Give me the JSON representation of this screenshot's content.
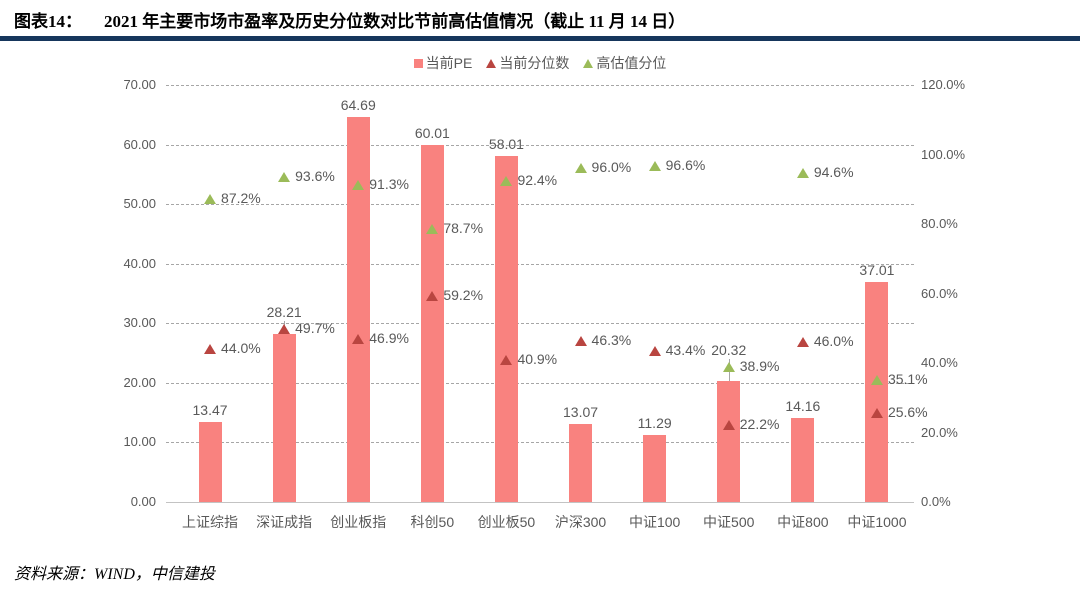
{
  "header": {
    "figure_label": "图表14：",
    "title": "2021 年主要市场市盈率及历史分位数对比节前高估值情况（截止 11 月 14 日）"
  },
  "footer": {
    "source": "资料来源：WIND，中信建投"
  },
  "colors": {
    "bar": "#f9827f",
    "current_percentile": "#b94540",
    "high_percentile": "#9bbb59",
    "grid": "#a6a6a6",
    "axis_text": "#595959",
    "title_rule": "#16365c"
  },
  "chart_data": {
    "type": "bar",
    "title": "2021 年主要市场市盈率及历史分位数对比节前高估值情况（截止 11 月 14 日）",
    "categories": [
      "上证综指",
      "深证成指",
      "创业板指",
      "科创50",
      "创业板50",
      "沪深300",
      "中证100",
      "中证500",
      "中证800",
      "中证1000"
    ],
    "series": [
      {
        "name": "当前PE",
        "type": "bar",
        "axis": "left",
        "values": [
          13.47,
          28.21,
          64.69,
          60.01,
          58.01,
          13.07,
          11.29,
          20.32,
          14.16,
          37.01
        ],
        "labels": [
          "13.47",
          "28.21",
          "64.69",
          "60.01",
          "58.01",
          "13.07",
          "11.29",
          "20.32",
          "14.16",
          "37.01"
        ]
      },
      {
        "name": "当前分位数",
        "type": "scatter-triangle",
        "axis": "right",
        "values": [
          44.0,
          49.7,
          46.9,
          59.2,
          40.9,
          46.3,
          43.4,
          22.2,
          46.0,
          25.6
        ],
        "labels": [
          "44.0%",
          "49.7%",
          "46.9%",
          "59.2%",
          "40.9%",
          "46.3%",
          "43.4%",
          "22.2%",
          "46.0%",
          "25.6%"
        ]
      },
      {
        "name": "高估值分位",
        "type": "scatter-triangle",
        "axis": "right",
        "values": [
          87.2,
          93.6,
          91.3,
          78.7,
          92.4,
          96.0,
          96.6,
          38.9,
          94.6,
          35.1
        ],
        "labels": [
          "87.2%",
          "93.6%",
          "91.3%",
          "78.7%",
          "92.4%",
          "96.0%",
          "96.6%",
          "38.9%",
          "94.6%",
          "35.1%"
        ]
      }
    ],
    "left_axis": {
      "min": 0,
      "max": 70,
      "ticks": [
        "70.00",
        "60.00",
        "50.00",
        "40.00",
        "30.00",
        "20.00",
        "10.00",
        "0.00"
      ]
    },
    "right_axis": {
      "min": 0,
      "max": 120,
      "ticks": [
        "120.0%",
        "100.0%",
        "80.0%",
        "60.0%",
        "40.0%",
        "20.0%",
        "0.0%"
      ]
    },
    "legend": [
      "当前PE",
      "当前分位数",
      "高估值分位"
    ],
    "legend_position": "top-center",
    "grid": "horizontal-dashed"
  }
}
